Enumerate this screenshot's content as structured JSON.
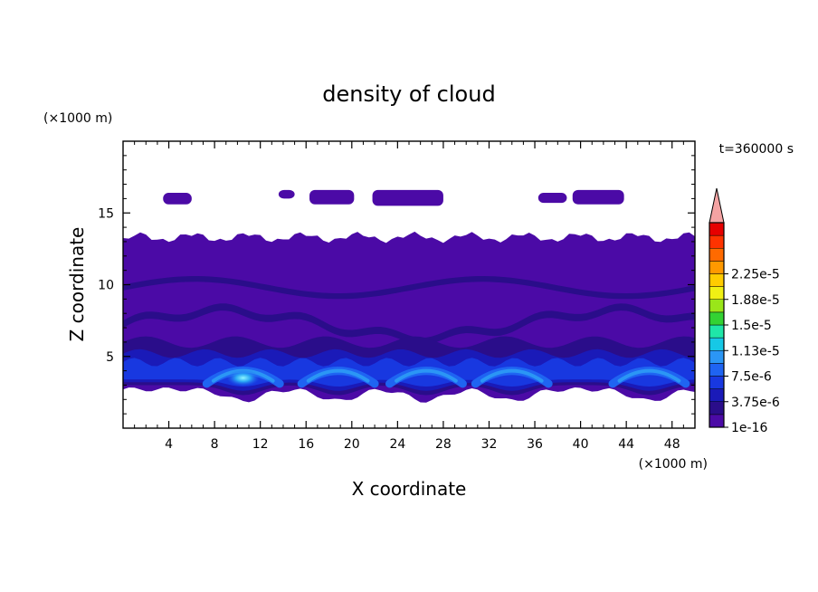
{
  "chart_data": {
    "type": "heatmap",
    "title": "density of cloud",
    "xlabel": "X coordinate",
    "ylabel": "Z coordinate",
    "x_unit": "(×1000 m)",
    "y_unit": "(×1000 m)",
    "time_label": "t=360000 s",
    "xlim": [
      0,
      50
    ],
    "ylim": [
      0,
      20
    ],
    "x_ticks": [
      4,
      8,
      12,
      16,
      20,
      24,
      28,
      32,
      36,
      40,
      44,
      48
    ],
    "y_ticks": [
      5,
      10,
      15
    ],
    "grid": false,
    "colorbar": {
      "labels": [
        "1e-16",
        "3.75e-6",
        "7.5e-6",
        "1.13e-5",
        "1.5e-5",
        "1.88e-5",
        "2.25e-5"
      ],
      "levels": [
        {
          "color": "#4b0aa6"
        },
        {
          "color": "#2a0d8a"
        },
        {
          "color": "#1a1ab8"
        },
        {
          "color": "#1838e0"
        },
        {
          "color": "#1f64f2"
        },
        {
          "color": "#2b96f5"
        },
        {
          "color": "#16c8e6"
        },
        {
          "color": "#1fe6a8"
        },
        {
          "color": "#33d233"
        },
        {
          "color": "#9ae619"
        },
        {
          "color": "#f0f014"
        },
        {
          "color": "#ffcc00"
        },
        {
          "color": "#ff9900"
        },
        {
          "color": "#ff6a00"
        },
        {
          "color": "#ff3300"
        },
        {
          "color": "#e60000"
        },
        {
          "color": "#f4a3a3"
        }
      ]
    },
    "field": {
      "main_layer_z": [
        2.7,
        13.3
      ],
      "upper_puffs_z": [
        15.6,
        16.6
      ],
      "enhanced_band_z": [
        3.0,
        6.0
      ],
      "bright_arc_centers_x": [
        10.5,
        18.8,
        26.5,
        34.0,
        46.0
      ],
      "bright_arc_peak_z": 4.0
    }
  }
}
